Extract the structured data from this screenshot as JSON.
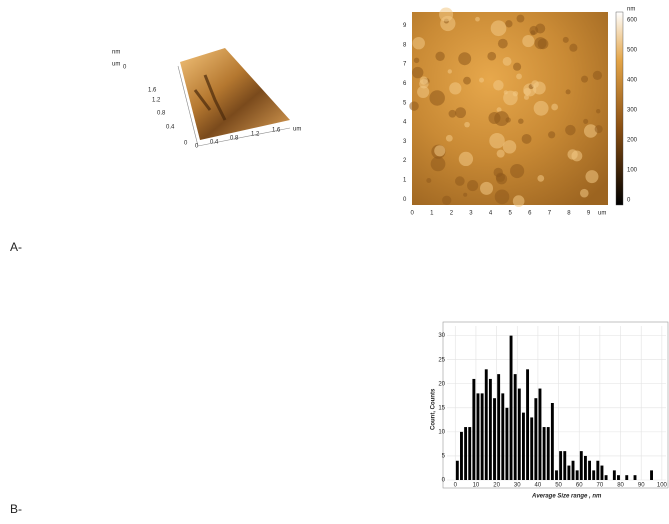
{
  "panel_labels": {
    "a": "A-",
    "b": "B-"
  },
  "afm_3d": {
    "z_unit": "nm",
    "y_unit": "um",
    "z_tick": 0,
    "y_ticks": [
      1.6,
      1.2,
      0.8,
      0.4,
      0
    ],
    "x_ticks": [
      0,
      0.4,
      0.8,
      1.2,
      1.6
    ],
    "x_unit": "um"
  },
  "afm_2d": {
    "y_ticks": [
      0,
      1,
      2,
      3,
      4,
      5,
      6,
      7,
      8,
      9
    ],
    "x_ticks": [
      0,
      1,
      2,
      3,
      4,
      5,
      6,
      7,
      8,
      9
    ],
    "x_unit": "um",
    "colorbar_unit": "nm",
    "colorbar_ticks": [
      0,
      100,
      200,
      300,
      400,
      500,
      600
    ]
  },
  "chart_data": {
    "type": "histogram",
    "xlabel": "Average Size range , nm",
    "ylabel": "Count, Counts",
    "color": "#000000",
    "bins": [
      0,
      2,
      4,
      6,
      8,
      10,
      12,
      14,
      16,
      18,
      20,
      22,
      24,
      26,
      28,
      30,
      32,
      34,
      36,
      38,
      40,
      42,
      44,
      46,
      48,
      50,
      52,
      54,
      56,
      58,
      60,
      62,
      64,
      66,
      68,
      70,
      72,
      74,
      76,
      78,
      80,
      82,
      84,
      86,
      88,
      90,
      92,
      94,
      96,
      98,
      100
    ],
    "values": [
      4,
      10,
      11,
      11,
      21,
      18,
      18,
      23,
      21,
      17,
      22,
      18,
      15,
      30,
      22,
      19,
      14,
      23,
      13,
      17,
      19,
      11,
      11,
      16,
      2,
      6,
      6,
      3,
      4,
      2,
      6,
      5,
      4,
      2,
      4,
      3,
      1,
      0,
      2,
      1,
      0,
      1,
      0,
      1,
      0,
      0,
      0,
      2,
      0,
      0
    ],
    "xlim": [
      -4,
      102
    ],
    "ylim": [
      0,
      32
    ],
    "xticks": [
      0,
      10,
      20,
      30,
      40,
      50,
      60,
      70,
      80,
      90,
      100
    ],
    "yticks": [
      0,
      5,
      10,
      15,
      20,
      25,
      30
    ],
    "grid": true
  }
}
